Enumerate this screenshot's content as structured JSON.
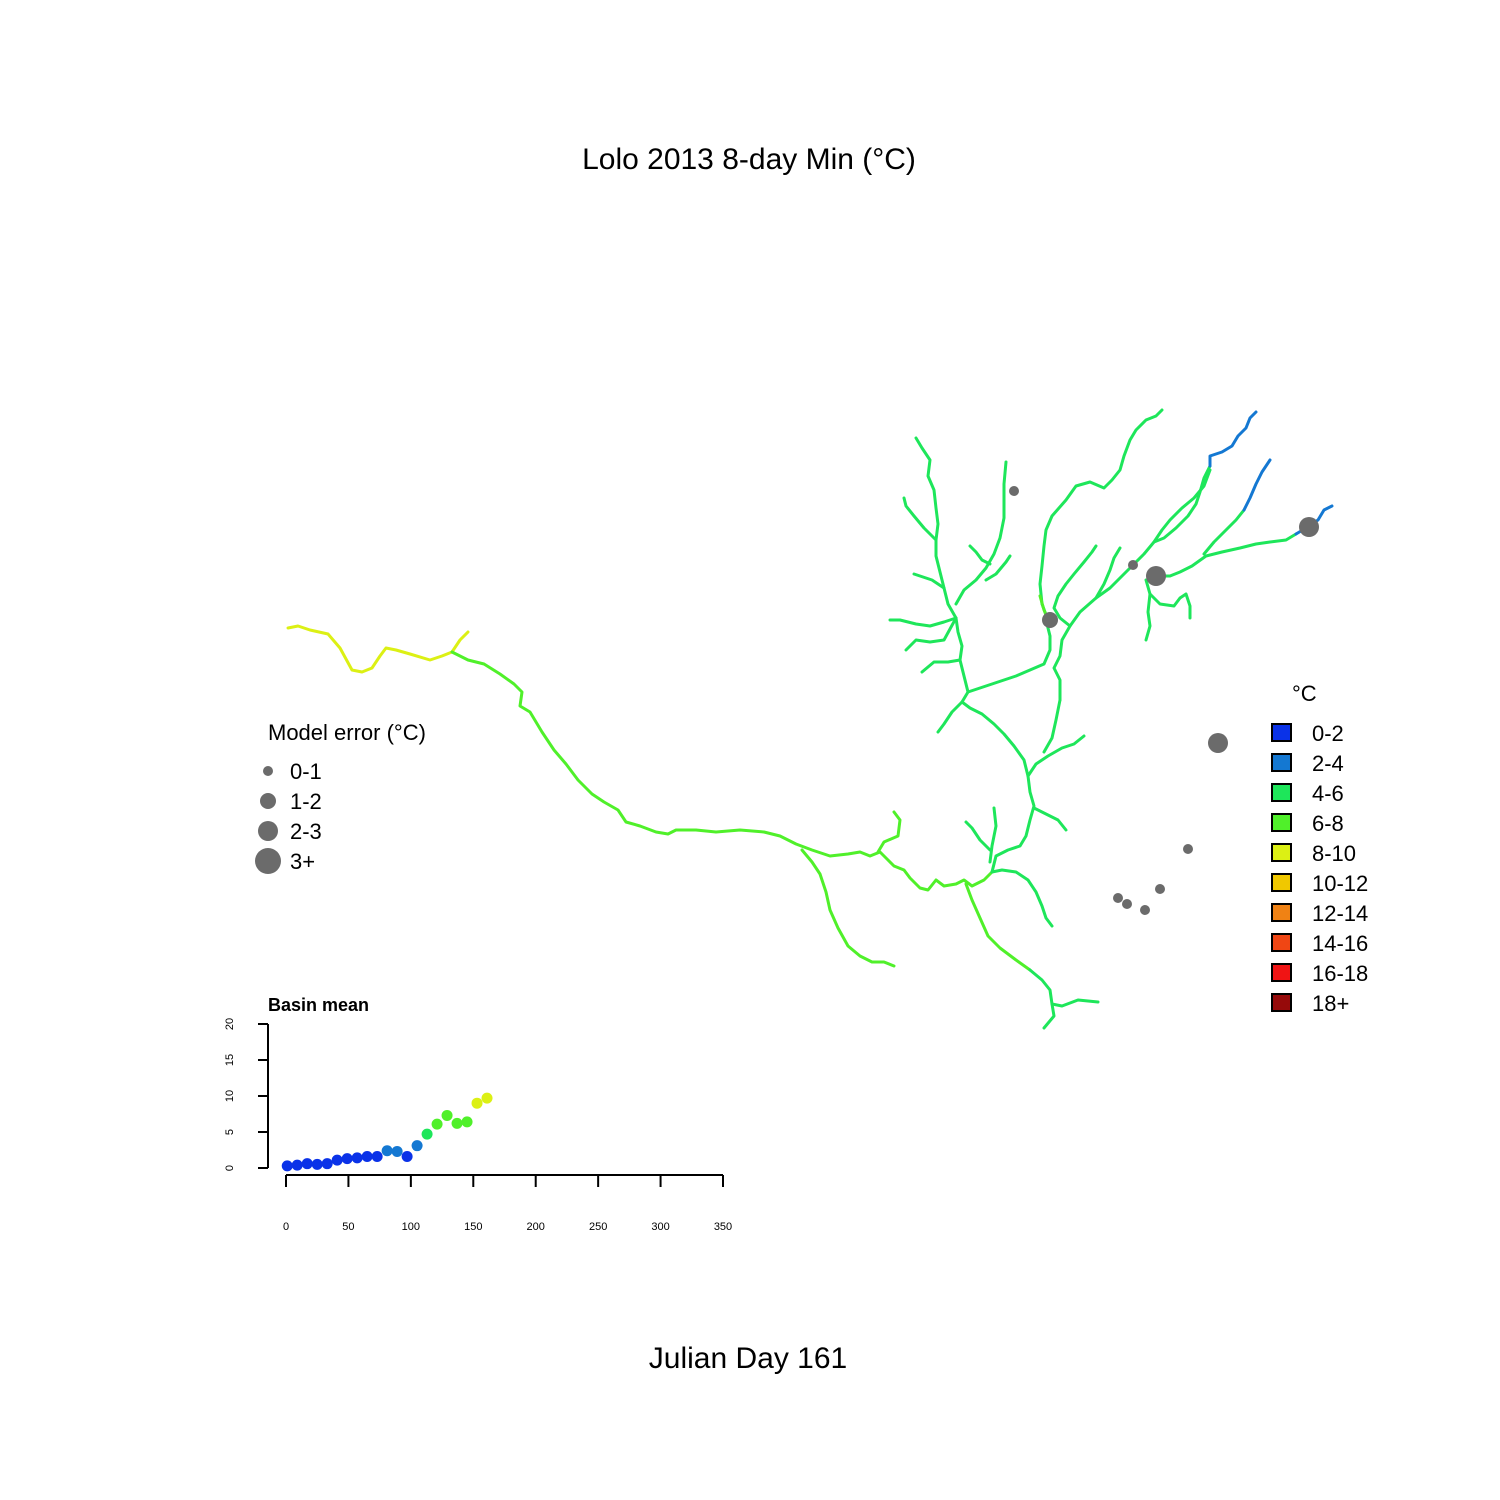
{
  "title": "Lolo 2013 8-day Min (°C)",
  "footer": "Julian Day 161",
  "colors": {
    "error_point": "#6b6b6b",
    "axis": "#000000"
  },
  "temperature_legend": {
    "title": "°C",
    "items": [
      {
        "label": "0-2",
        "color": "#0a32e8"
      },
      {
        "label": "2-4",
        "color": "#1478d2"
      },
      {
        "label": "4-6",
        "color": "#1ee65a"
      },
      {
        "label": "6-8",
        "color": "#50f02a"
      },
      {
        "label": "8-10",
        "color": "#dcf014"
      },
      {
        "label": "10-12",
        "color": "#f0c800"
      },
      {
        "label": "12-14",
        "color": "#f08214"
      },
      {
        "label": "14-16",
        "color": "#f04614"
      },
      {
        "label": "16-18",
        "color": "#f01414"
      },
      {
        "label": "18+",
        "color": "#960a0a"
      }
    ]
  },
  "error_legend": {
    "title": "Model error (°C)",
    "items": [
      {
        "label": "0-1",
        "size_class": 1
      },
      {
        "label": "1-2",
        "size_class": 2
      },
      {
        "label": "2-3",
        "size_class": 3
      },
      {
        "label": "3+",
        "size_class": 4
      }
    ]
  },
  "map": {
    "error_sites": [
      {
        "name": "site-1",
        "size_class": 1
      },
      {
        "name": "site-2",
        "size_class": 1
      },
      {
        "name": "site-3",
        "size_class": 2
      },
      {
        "name": "site-4",
        "size_class": 1
      },
      {
        "name": "site-5",
        "size_class": 3
      },
      {
        "name": "site-6",
        "size_class": 3
      },
      {
        "name": "site-7",
        "size_class": 3
      },
      {
        "name": "site-8",
        "size_class": 1
      },
      {
        "name": "site-9",
        "size_class": 1
      },
      {
        "name": "site-10",
        "size_class": 1
      },
      {
        "name": "site-11",
        "size_class": 1
      },
      {
        "name": "site-12",
        "size_class": 1
      }
    ]
  },
  "chart_data": {
    "type": "scatter",
    "title": "Basin mean",
    "xlabel": "",
    "ylabel": "",
    "xlim": [
      0,
      350
    ],
    "ylim": [
      0,
      20
    ],
    "x_ticks": [
      0,
      50,
      100,
      150,
      200,
      250,
      300,
      350
    ],
    "y_ticks": [
      0,
      5,
      10,
      15,
      20
    ],
    "grid": false,
    "x": [
      1,
      9,
      17,
      25,
      33,
      41,
      49,
      57,
      65,
      73,
      81,
      89,
      97,
      105,
      113,
      121,
      129,
      137,
      145,
      153,
      161
    ],
    "y": [
      0.3,
      0.4,
      0.6,
      0.5,
      0.6,
      1.1,
      1.3,
      1.4,
      1.6,
      1.6,
      2.4,
      2.3,
      1.6,
      3.1,
      4.7,
      6.1,
      7.3,
      6.2,
      6.4,
      9.0,
      9.7
    ]
  }
}
